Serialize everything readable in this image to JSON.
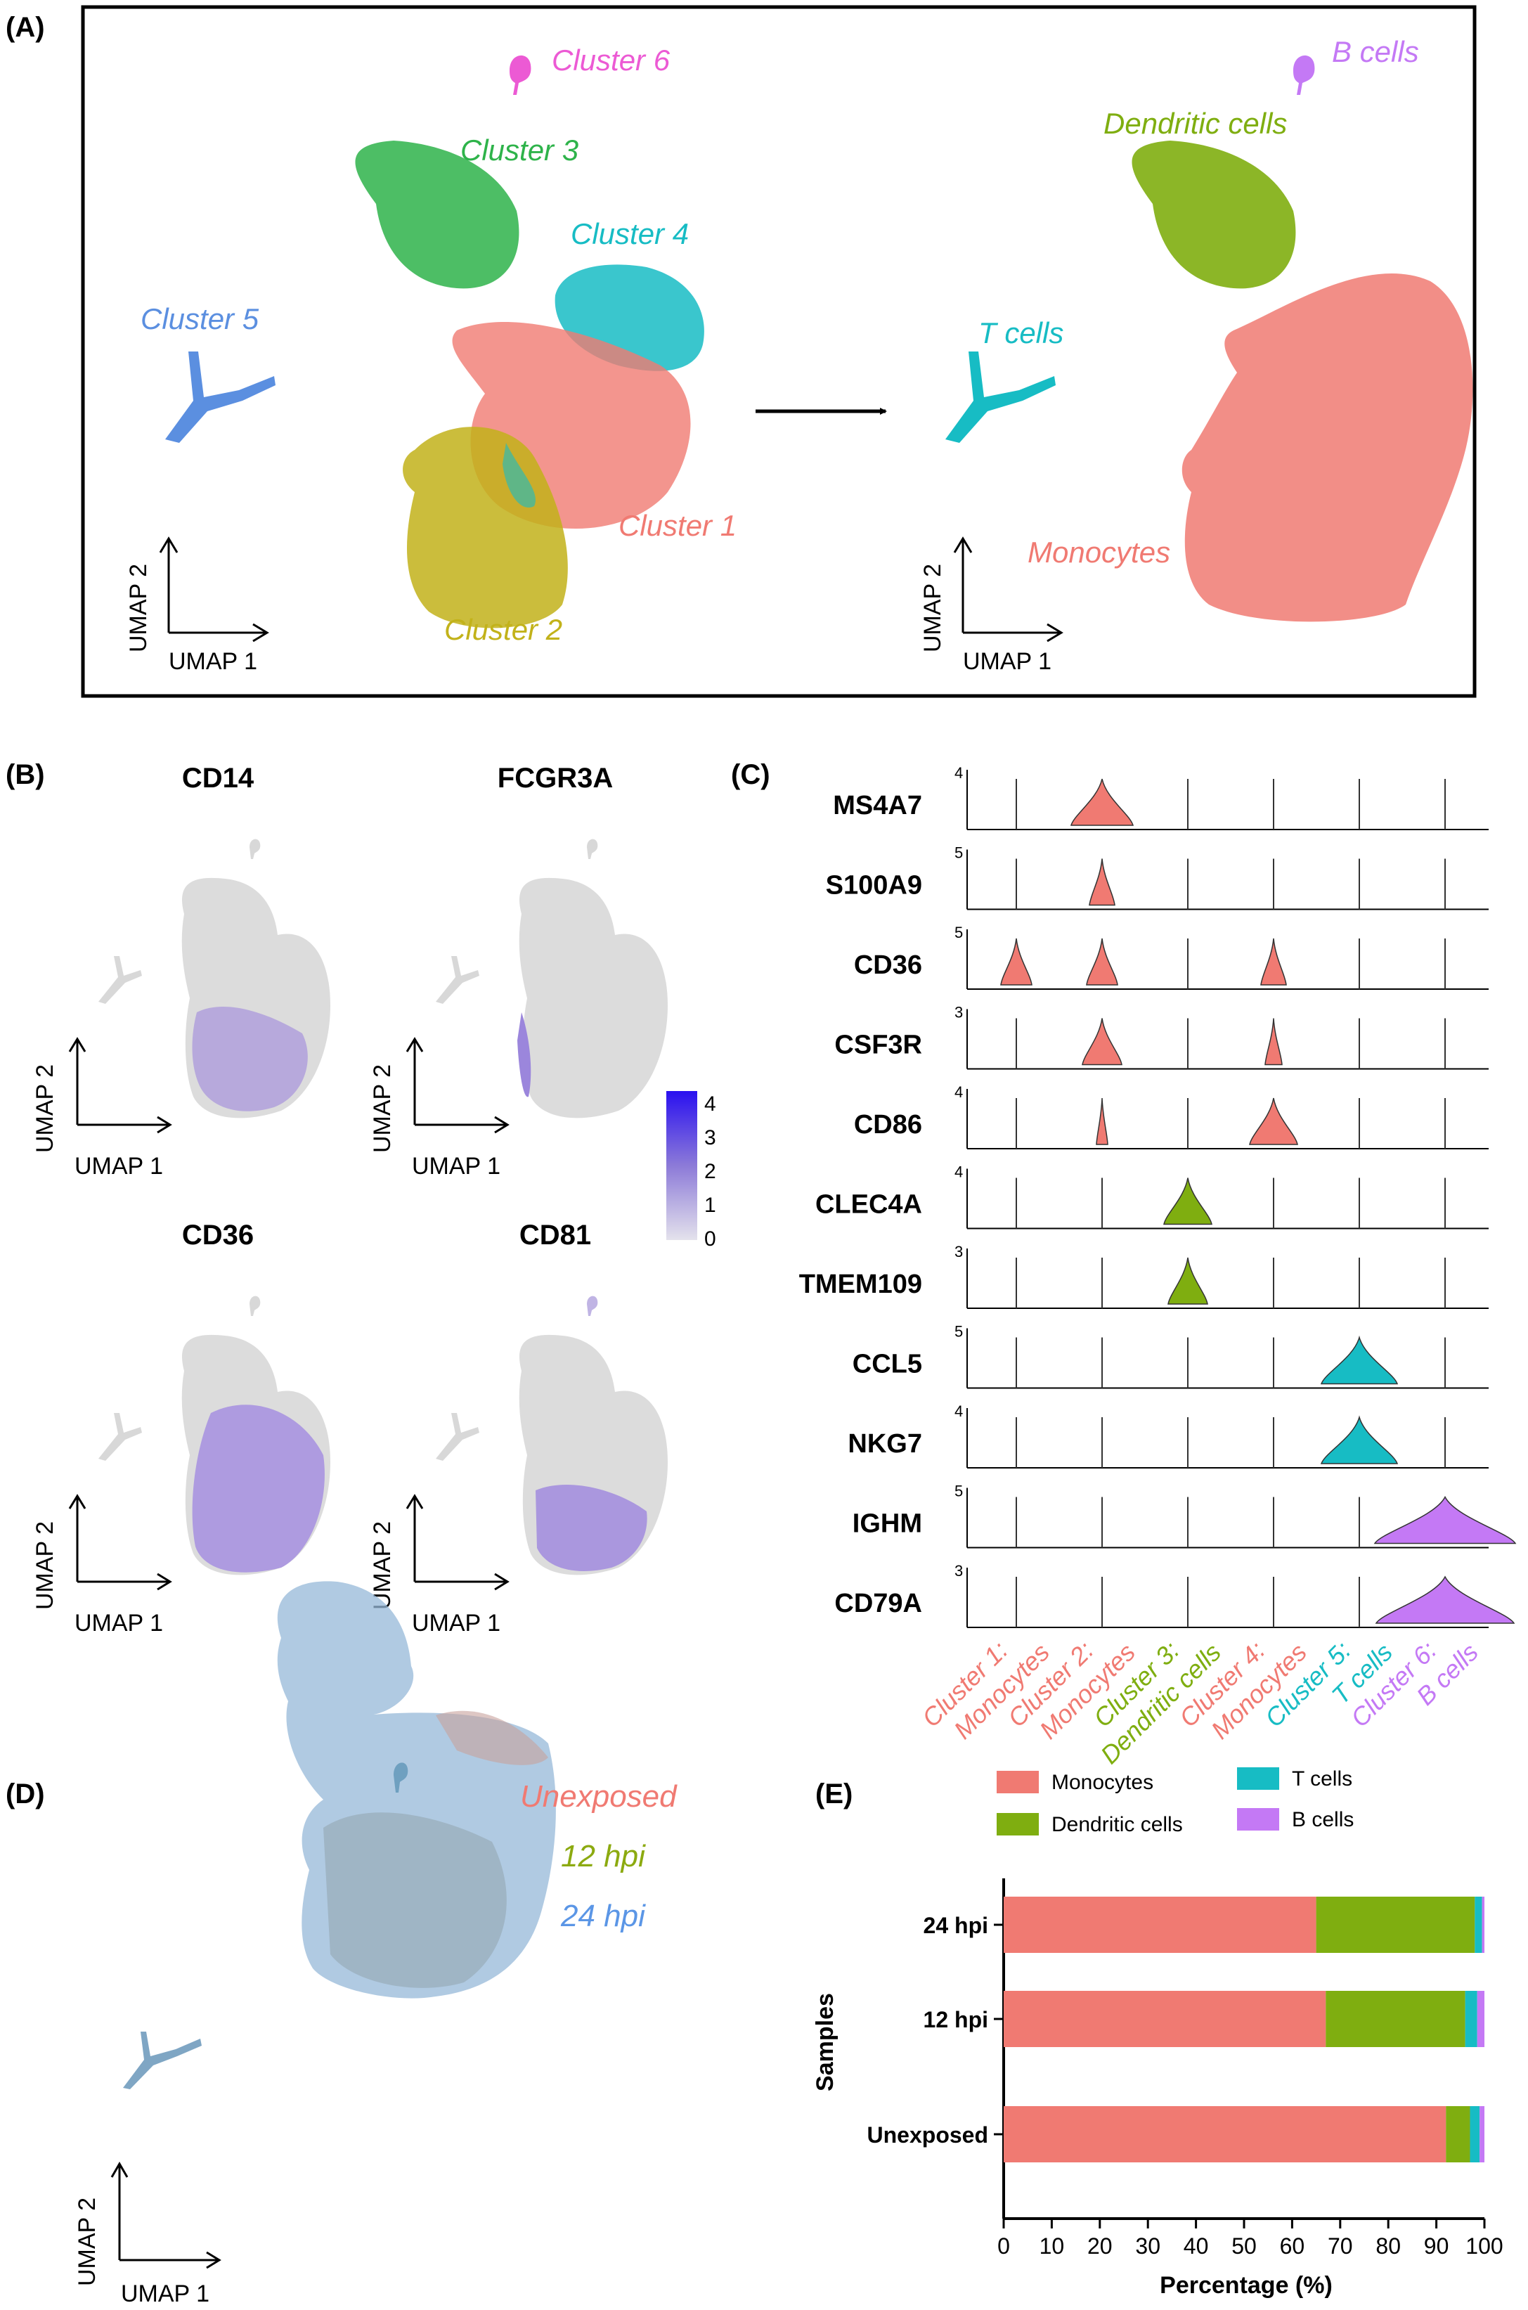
{
  "panels": {
    "A": {
      "label": "(A)",
      "left_labels": [
        "Cluster 6",
        "Cluster 3",
        "Cluster 4",
        "Cluster 5",
        "Cluster 1",
        "Cluster 2"
      ],
      "right_labels": [
        "B cells",
        "Dendritic cells",
        "T cells",
        "Monocytes"
      ],
      "axis_x": "UMAP 1",
      "axis_y": "UMAP 2"
    },
    "B": {
      "label": "(B)",
      "genes": [
        "CD14",
        "FCGR3A",
        "CD36",
        "CD81"
      ],
      "axis_x": "UMAP 1",
      "axis_y": "UMAP 2",
      "colorbar_ticks": [
        "4",
        "3",
        "2",
        "1",
        "0"
      ]
    },
    "C": {
      "label": "(C)",
      "genes": [
        "MS4A7",
        "S100A9",
        "CD36",
        "CSF3R",
        "CD86",
        "CLEC4A",
        "TMEM109",
        "CCL5",
        "NKG7",
        "IGHM",
        "CD79A"
      ],
      "max_ticks": [
        "4",
        "5",
        "5",
        "3",
        "4",
        "4",
        "3",
        "5",
        "4",
        "5",
        "3"
      ],
      "groups": [
        {
          "line1": "Cluster 1:",
          "line2": "Monocytes"
        },
        {
          "line1": "Cluster 2:",
          "line2": "Monocytes"
        },
        {
          "line1": "Cluster 3:",
          "line2": "Dendritic cells"
        },
        {
          "line1": "Cluster 4:",
          "line2": "Monocytes"
        },
        {
          "line1": "Cluster 5:",
          "line2": "T cells"
        },
        {
          "line1": "Cluster 6:",
          "line2": "B cells"
        }
      ]
    },
    "D": {
      "label": "(D)",
      "legend": [
        "Unexposed",
        "12 hpi",
        "24 hpi"
      ],
      "axis_x": "UMAP 1",
      "axis_y": "UMAP 2"
    },
    "E": {
      "label": "(E)"
    }
  },
  "colors": {
    "monocytes": "#f07a72",
    "dendritic": "#7fae10",
    "tcells": "#17bcc4",
    "bcells": "#c479f5",
    "cluster2": "#c2b21a",
    "cluster5": "#5b8fe0",
    "cluster6": "#ec5ad4",
    "cluster3": "#2eb34a",
    "twelve_hpi": "#8caa10",
    "twentyfour_hpi": "#5b96e6"
  },
  "chart_data": {
    "type": "bar",
    "orientation": "horizontal",
    "stacked": true,
    "categories": [
      "24 hpi",
      "12 hpi",
      "Unexposed"
    ],
    "series": [
      {
        "name": "Monocytes",
        "values": [
          65,
          67,
          92
        ]
      },
      {
        "name": "Dendritic cells",
        "values": [
          33,
          29,
          5
        ]
      },
      {
        "name": "T cells",
        "values": [
          1.5,
          2.5,
          2
        ]
      },
      {
        "name": "B cells",
        "values": [
          0.5,
          1.5,
          1
        ]
      }
    ],
    "xlabel": "Percentage (%)",
    "ylabel": "Samples",
    "xlim": [
      0,
      100
    ],
    "xticks": [
      0,
      10,
      20,
      30,
      40,
      50,
      60,
      70,
      80,
      90,
      100
    ],
    "legend": [
      "Monocytes",
      "T cells",
      "Dendritic cells",
      "B cells"
    ]
  }
}
